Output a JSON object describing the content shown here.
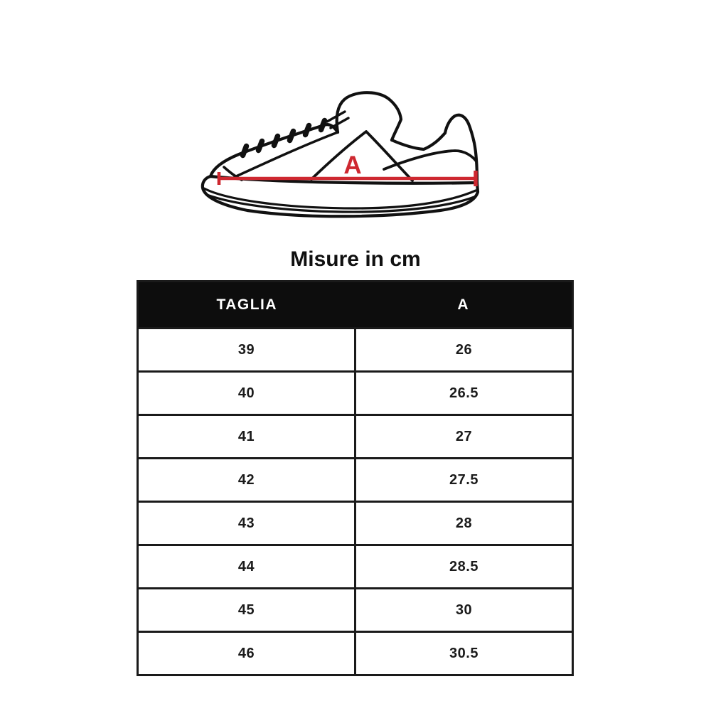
{
  "title": "Misure in cm",
  "diagram": {
    "measure_label": "A",
    "accent_color": "#ce2830",
    "line_color": "#111111"
  },
  "table": {
    "headers": [
      "TAGLIA",
      "A"
    ],
    "rows": [
      [
        "39",
        "26"
      ],
      [
        "40",
        "26.5"
      ],
      [
        "41",
        "27"
      ],
      [
        "42",
        "27.5"
      ],
      [
        "43",
        "28"
      ],
      [
        "44",
        "28.5"
      ],
      [
        "45",
        "30"
      ],
      [
        "46",
        "30.5"
      ]
    ],
    "header_bg": "#0d0d0d",
    "header_text_color": "#ffffff",
    "border_color": "#1a1a1a"
  },
  "chart_data": {
    "type": "table",
    "title": "Misure in cm",
    "columns": [
      "TAGLIA",
      "A"
    ],
    "rows": [
      [
        39,
        26
      ],
      [
        40,
        26.5
      ],
      [
        41,
        27
      ],
      [
        42,
        27.5
      ],
      [
        43,
        28
      ],
      [
        44,
        28.5
      ],
      [
        45,
        30
      ],
      [
        46,
        30.5
      ]
    ]
  }
}
